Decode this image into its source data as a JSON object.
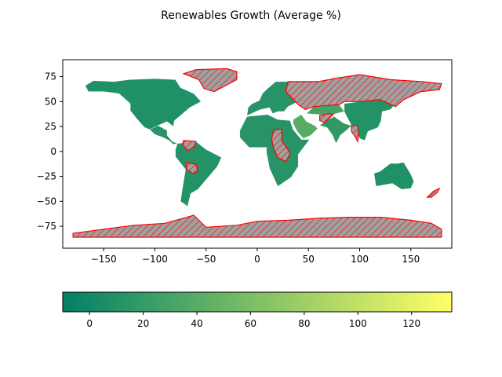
{
  "chart_data": {
    "type": "choropleth",
    "title": "Renewables Growth (Average %)",
    "xlabel": "",
    "ylabel": "",
    "xlim": [
      -190,
      190
    ],
    "ylim": [
      -97,
      92
    ],
    "x_ticks": [
      -150,
      -100,
      -50,
      0,
      50,
      100,
      150
    ],
    "x_tick_labels": [
      "−150",
      "−100",
      "−50",
      "0",
      "50",
      "100",
      "150"
    ],
    "y_ticks": [
      75,
      50,
      25,
      0,
      -25,
      -50,
      -75
    ],
    "y_tick_labels": [
      "75",
      "50",
      "25",
      "0",
      "−25",
      "−50",
      "−75"
    ],
    "colormap": "summer",
    "color_range": [
      -10,
      135
    ],
    "colorbar_ticks": [
      0,
      20,
      40,
      60,
      80,
      100,
      120
    ],
    "colorbar_tick_labels": [
      "0",
      "20",
      "40",
      "60",
      "80",
      "100",
      "120"
    ],
    "missing_data_style": {
      "fill": "#a0a0a0",
      "edge": "#ff0000",
      "hatch": "////"
    },
    "regions": [
      {
        "name": "north-america",
        "value": 8
      },
      {
        "name": "central-america",
        "value": 12
      },
      {
        "name": "south-america",
        "value": 10
      },
      {
        "name": "europe",
        "value": 12
      },
      {
        "name": "africa",
        "value": 12
      },
      {
        "name": "middle-east",
        "value": 40
      },
      {
        "name": "south-asia",
        "value": 18
      },
      {
        "name": "east-asia",
        "value": 10
      },
      {
        "name": "oceania",
        "value": 8
      },
      {
        "name": "central-asia",
        "value": 30
      },
      {
        "name": "greenland",
        "value": null
      },
      {
        "name": "russia",
        "value": null
      },
      {
        "name": "antarctica",
        "value": null
      },
      {
        "name": "venezuela",
        "value": null
      },
      {
        "name": "bolivia",
        "value": null
      },
      {
        "name": "central-africa",
        "value": null
      },
      {
        "name": "afghanistan",
        "value": null
      },
      {
        "name": "myanmar",
        "value": null
      },
      {
        "name": "nz",
        "value": null
      }
    ]
  }
}
